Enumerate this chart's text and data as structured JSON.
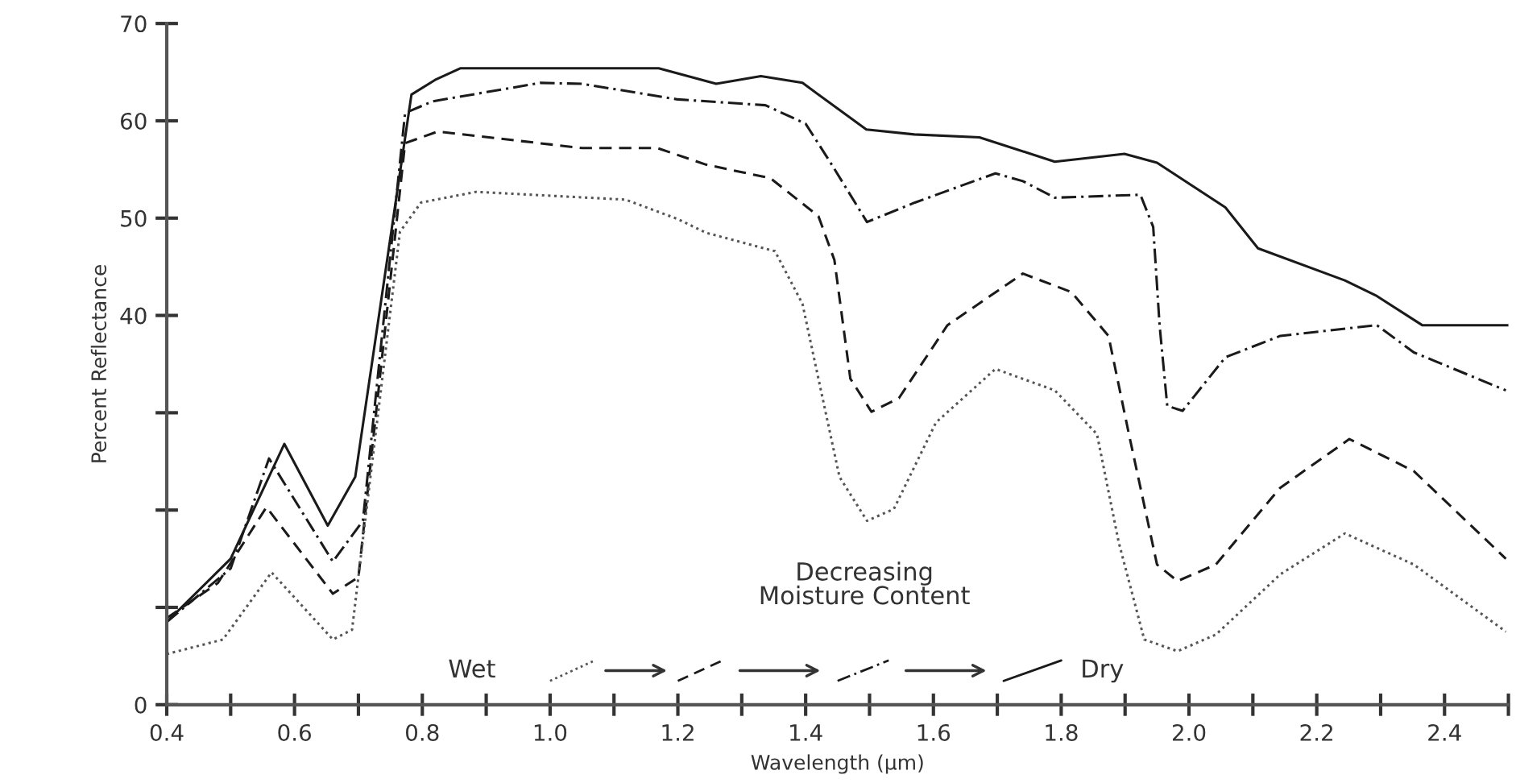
{
  "chart_data": {
    "type": "line",
    "xlabel": "Wavelength (μm)",
    "ylabel": "Percent Reflectance",
    "xlim": [
      0.4,
      2.5
    ],
    "ylim": [
      0,
      70
    ],
    "xticks": [
      0.4,
      {
        "value": 0.5,
        "label": null
      },
      0.6,
      {
        "value": 0.7,
        "label": null
      },
      0.8,
      {
        "value": 0.9,
        "label": null
      },
      {
        "value": 1.0,
        "label": "1.0"
      },
      {
        "value": 1.1,
        "label": null
      },
      1.2,
      {
        "value": 1.3,
        "label": null
      },
      1.4,
      {
        "value": 1.5,
        "label": null
      },
      1.6,
      {
        "value": 1.7,
        "label": null
      },
      1.8,
      {
        "value": 1.9,
        "label": null
      },
      {
        "value": 2.0,
        "label": "2.0"
      },
      {
        "value": 2.1,
        "label": null
      },
      2.2,
      {
        "value": 2.3,
        "label": null
      },
      2.4,
      {
        "value": 2.5,
        "label": null
      }
    ],
    "yticks": [
      0,
      {
        "value": 10,
        "label": null
      },
      {
        "value": 20,
        "label": null
      },
      {
        "value": 30,
        "label": null
      },
      40,
      50,
      60,
      70
    ],
    "grid": false,
    "marker": "none",
    "annotations": [
      "Decreasing\nMoisture Content",
      "Wet",
      "Dry"
    ],
    "series": [
      {
        "color": "#1a1a1a",
        "line_style": "solid",
        "x": [
          0.4,
          0.5,
          0.584,
          0.652,
          0.695,
          0.783,
          0.82,
          0.86,
          1.17,
          1.26,
          1.33,
          1.395,
          1.495,
          1.57,
          1.672,
          1.79,
          1.899,
          1.95,
          2.057,
          2.108,
          2.244,
          2.294,
          2.365,
          2.486,
          2.5
        ],
        "values": [
          8.5,
          15,
          26.8,
          18.4,
          23.4,
          62.7,
          64.2,
          65.4,
          65.4,
          63.8,
          64.6,
          63.9,
          59.1,
          58.6,
          58.3,
          55.8,
          56.6,
          55.7,
          51.1,
          46.9,
          43.6,
          42.0,
          39.0,
          39.0,
          39.0
        ]
      },
      {
        "color": "#1a1a1a",
        "line_style": "dashdot",
        "x": [
          0.4,
          0.5,
          0.56,
          0.66,
          0.707,
          0.773,
          0.816,
          0.985,
          1.05,
          1.2,
          1.337,
          1.4,
          1.438,
          1.496,
          1.571,
          1.697,
          1.74,
          1.79,
          1.924,
          1.944,
          1.954,
          1.966,
          1.99,
          2.057,
          2.143,
          2.294,
          2.352,
          2.496
        ],
        "values": [
          8.5,
          14,
          25.3,
          14.7,
          18.9,
          60.8,
          62.0,
          63.9,
          63.8,
          62.2,
          61.6,
          59.7,
          55.8,
          49.6,
          51.6,
          54.6,
          53.8,
          52.1,
          52.4,
          49.1,
          39.0,
          30.7,
          30.2,
          35.7,
          37.9,
          39.0,
          36.2,
          32.3
        ]
      },
      {
        "color": "#1a1a1a",
        "line_style": "dashed",
        "x": [
          0.4,
          0.48,
          0.556,
          0.66,
          0.7,
          0.773,
          0.824,
          1.05,
          1.168,
          1.244,
          1.345,
          1.42,
          1.445,
          1.47,
          1.503,
          1.546,
          1.622,
          1.74,
          1.816,
          1.874,
          1.906,
          1.95,
          1.982,
          2.042,
          2.143,
          2.251,
          2.352,
          2.496
        ],
        "values": [
          8.9,
          12.5,
          20.3,
          11.4,
          13.1,
          57.7,
          58.9,
          57.2,
          57.2,
          55.5,
          54.1,
          50.2,
          45.7,
          33.5,
          30.1,
          31.5,
          39.0,
          44.3,
          42.4,
          37.9,
          27.8,
          14.4,
          12.7,
          14.4,
          22.3,
          27.3,
          24.0,
          15.0
        ]
      },
      {
        "color": "#555555",
        "line_style": "dotted",
        "x": [
          0.4,
          0.488,
          0.564,
          0.66,
          0.69,
          0.765,
          0.798,
          0.884,
          1.118,
          1.2,
          1.244,
          1.352,
          1.395,
          1.42,
          1.453,
          1.496,
          1.538,
          1.604,
          1.697,
          1.79,
          1.856,
          1.89,
          1.93,
          1.982,
          2.042,
          2.143,
          2.244,
          2.352,
          2.496
        ],
        "values": [
          5.2,
          6.7,
          13.6,
          6.7,
          7.7,
          48.6,
          51.6,
          52.7,
          51.9,
          49.9,
          48.5,
          46.6,
          41.2,
          33.5,
          23.4,
          18.9,
          20.1,
          29.0,
          34.5,
          32.3,
          27.8,
          16.7,
          6.7,
          5.5,
          7.2,
          13.4,
          17.6,
          14.4,
          7.5
        ]
      }
    ]
  }
}
